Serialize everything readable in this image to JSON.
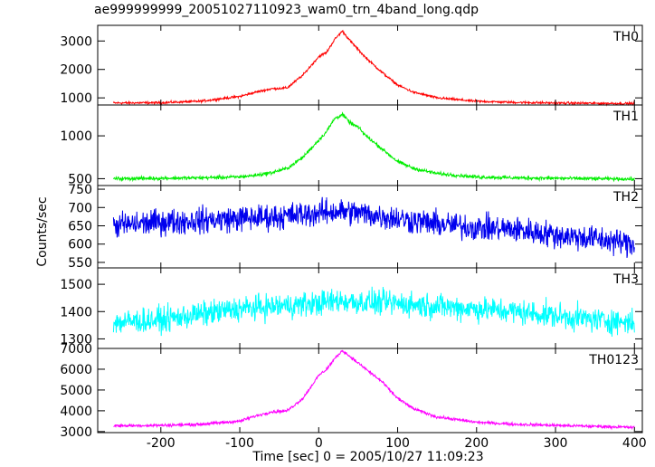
{
  "window": {
    "title": "ae999999999_20051027110923_wam0_trn_4band_long.qdp"
  },
  "chart_data": {
    "type": "line",
    "title": "ae999999999_20051027110923_wam0_trn_4band_long.qdp",
    "xlabel": "Time [sec] 0 = 2005/10/27 11:09:23",
    "ylabel": "Counts/sec",
    "xlim": [
      -280,
      410
    ],
    "xticks": [
      -200,
      -100,
      0,
      100,
      200,
      300,
      400
    ],
    "panels": [
      {
        "name": "TH0",
        "color": "#ff0000",
        "ylim": [
          750,
          3550
        ],
        "yticks": [
          1000,
          2000,
          3000
        ],
        "x": [
          -260,
          -200,
          -150,
          -100,
          -80,
          -60,
          -40,
          -20,
          0,
          10,
          20,
          30,
          40,
          50,
          60,
          80,
          100,
          120,
          150,
          200,
          250,
          300,
          350,
          400
        ],
        "y": [
          820,
          830,
          880,
          1050,
          1200,
          1320,
          1350,
          1800,
          2450,
          2600,
          3050,
          3350,
          3000,
          2700,
          2400,
          1900,
          1450,
          1200,
          1000,
          880,
          840,
          820,
          810,
          800
        ],
        "noise": 40
      },
      {
        "name": "TH1",
        "color": "#00ee00",
        "ylim": [
          420,
          1360
        ],
        "yticks": [
          500,
          1000
        ],
        "x": [
          -260,
          -200,
          -150,
          -100,
          -80,
          -60,
          -40,
          -20,
          0,
          10,
          20,
          30,
          40,
          50,
          60,
          80,
          100,
          120,
          150,
          200,
          250,
          300,
          350,
          400
        ],
        "y": [
          500,
          505,
          510,
          520,
          540,
          570,
          620,
          750,
          950,
          1050,
          1200,
          1250,
          1150,
          1100,
          1000,
          850,
          700,
          620,
          560,
          520,
          510,
          505,
          500,
          495
        ],
        "noise": 20
      },
      {
        "name": "TH2",
        "color": "#0000ee",
        "ylim": [
          535,
          760
        ],
        "yticks": [
          550,
          600,
          650,
          700,
          750
        ],
        "x": [
          -260,
          -200,
          -150,
          -100,
          -50,
          0,
          25,
          50,
          100,
          150,
          200,
          250,
          300,
          350,
          400
        ],
        "y": [
          650,
          660,
          665,
          670,
          675,
          685,
          690,
          685,
          670,
          655,
          645,
          640,
          625,
          615,
          600
        ],
        "noise": 35
      },
      {
        "name": "TH3",
        "color": "#00ffff",
        "ylim": [
          1265,
          1560
        ],
        "yticks": [
          1300,
          1400,
          1500
        ],
        "x": [
          -260,
          -200,
          -150,
          -100,
          -50,
          0,
          25,
          50,
          100,
          150,
          200,
          250,
          300,
          350,
          400
        ],
        "y": [
          1360,
          1370,
          1390,
          1410,
          1420,
          1430,
          1440,
          1435,
          1430,
          1420,
          1410,
          1400,
          1385,
          1370,
          1360
        ],
        "noise": 45
      },
      {
        "name": "TH0123",
        "color": "#ff00ff",
        "ylim": [
          2950,
          7000
        ],
        "yticks": [
          3000,
          4000,
          5000,
          6000,
          7000
        ],
        "x": [
          -260,
          -200,
          -150,
          -100,
          -80,
          -60,
          -40,
          -20,
          0,
          10,
          20,
          30,
          40,
          50,
          60,
          80,
          100,
          120,
          150,
          200,
          250,
          300,
          350,
          400
        ],
        "y": [
          3280,
          3300,
          3350,
          3500,
          3750,
          3950,
          4000,
          4600,
          5700,
          6000,
          6500,
          6900,
          6600,
          6300,
          6000,
          5400,
          4600,
          4100,
          3700,
          3450,
          3350,
          3300,
          3250,
          3200
        ],
        "noise": 70
      }
    ]
  }
}
